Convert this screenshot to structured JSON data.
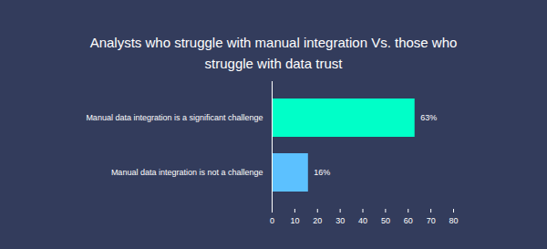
{
  "chart_data": {
    "type": "bar",
    "orientation": "horizontal",
    "title": "Analysts who struggle with manual integration Vs. those who struggle with data trust",
    "categories": [
      "Manual data integration is a significant challenge",
      "Manual data integration is not a challenge"
    ],
    "values": [
      63,
      16
    ],
    "value_labels": [
      "63%",
      "16%"
    ],
    "data_labels": true,
    "colors": [
      "#00ffc8",
      "#5cc1ff"
    ],
    "xlim": [
      0,
      80
    ],
    "xticks": [
      0,
      10,
      20,
      30,
      40,
      50,
      60,
      70,
      80
    ],
    "grid": false
  }
}
